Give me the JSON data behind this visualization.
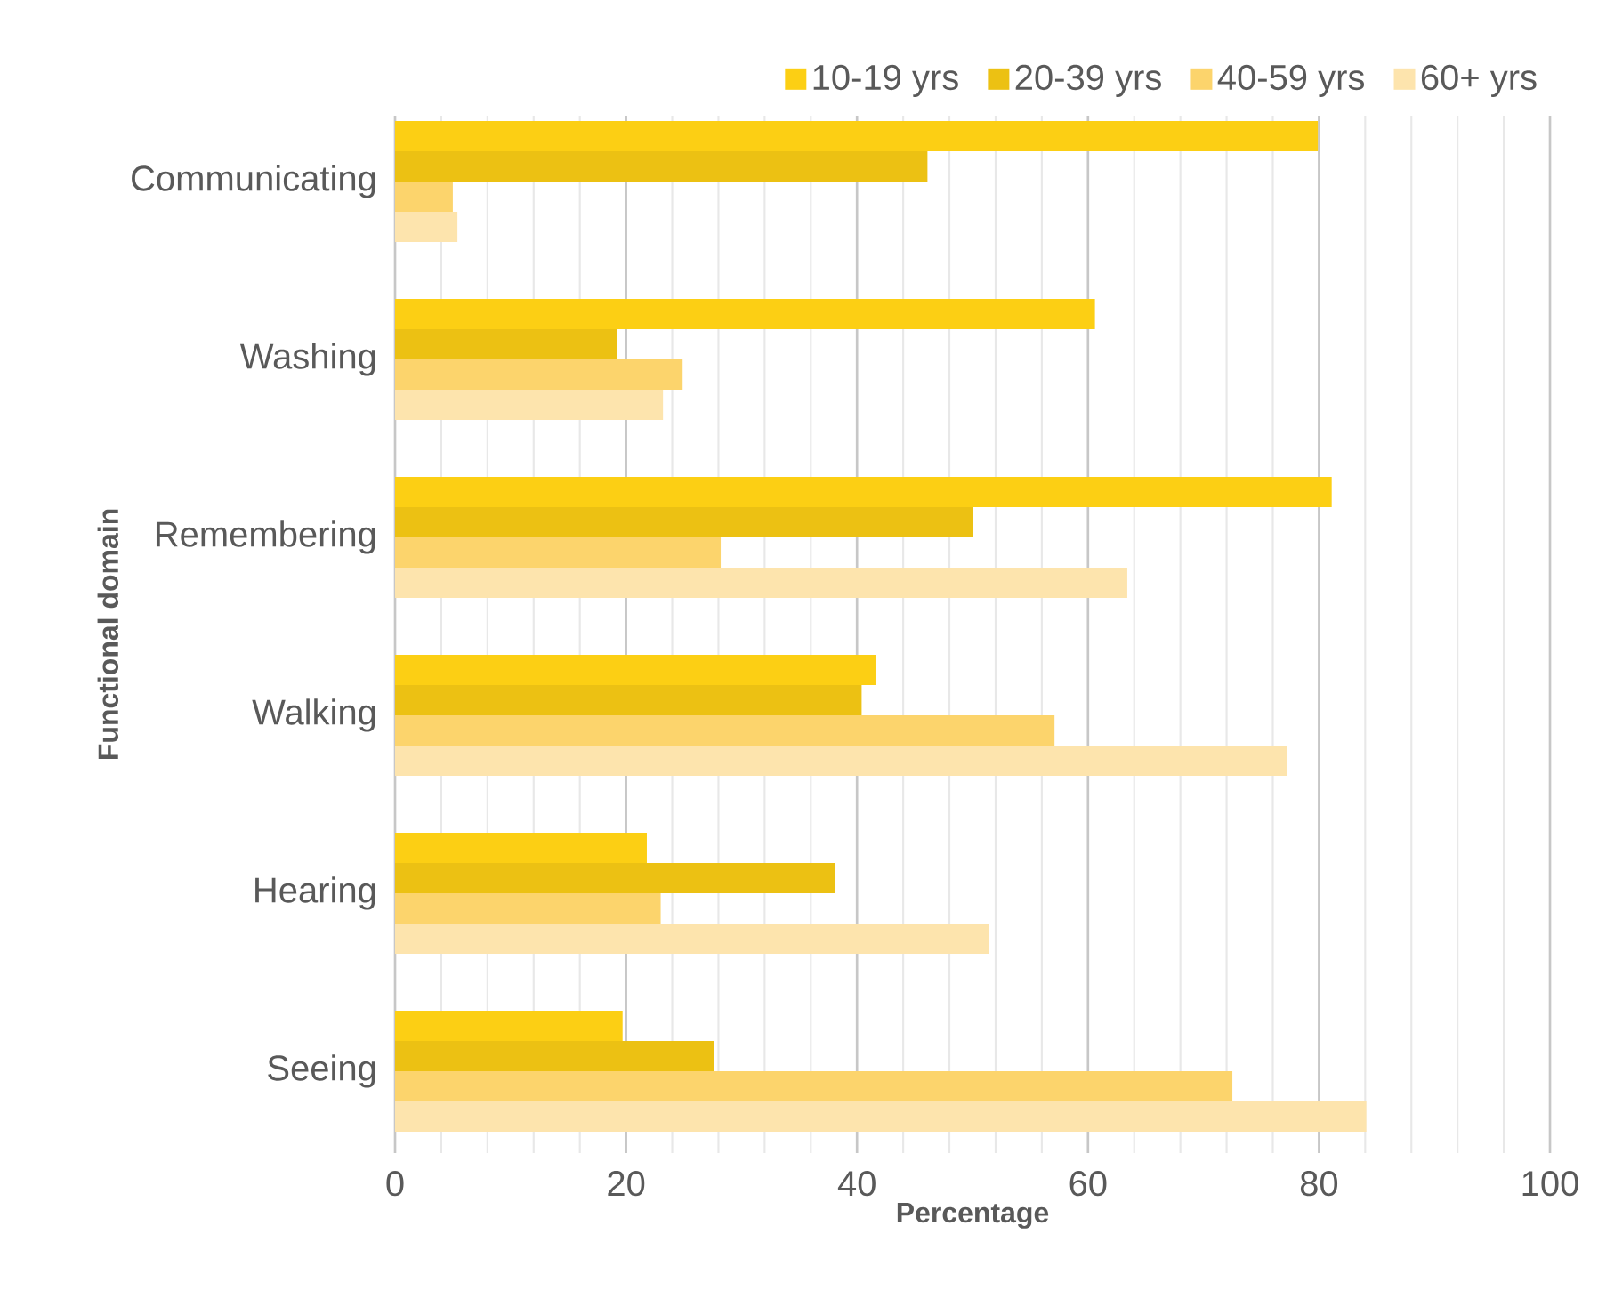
{
  "chart_data": {
    "type": "bar",
    "orientation": "horizontal",
    "xlabel": "Percentage",
    "ylabel": "Functional domain",
    "categories": [
      "Communicating",
      "Washing",
      "Remembering",
      "Walking",
      "Hearing",
      "Seeing"
    ],
    "series": [
      {
        "name": "10-19 yrs",
        "color": "#fccf14",
        "values": [
          79.9,
          60.6,
          81.1,
          41.6,
          21.8,
          19.7
        ]
      },
      {
        "name": "20-39 yrs",
        "color": "#ecc113",
        "values": [
          46.1,
          19.2,
          50.0,
          40.4,
          38.1,
          27.6
        ]
      },
      {
        "name": "40-59 yrs",
        "color": "#fcd46c",
        "values": [
          5.0,
          24.9,
          28.2,
          57.1,
          23.0,
          72.5
        ]
      },
      {
        "name": "60+ yrs",
        "color": "#fde4ad",
        "values": [
          5.4,
          23.2,
          63.4,
          77.2,
          51.4,
          84.1
        ]
      }
    ],
    "xlim": [
      0,
      100
    ],
    "xticks": [
      0,
      20,
      40,
      60,
      80,
      100
    ],
    "grid": "x",
    "legend": "top right"
  }
}
